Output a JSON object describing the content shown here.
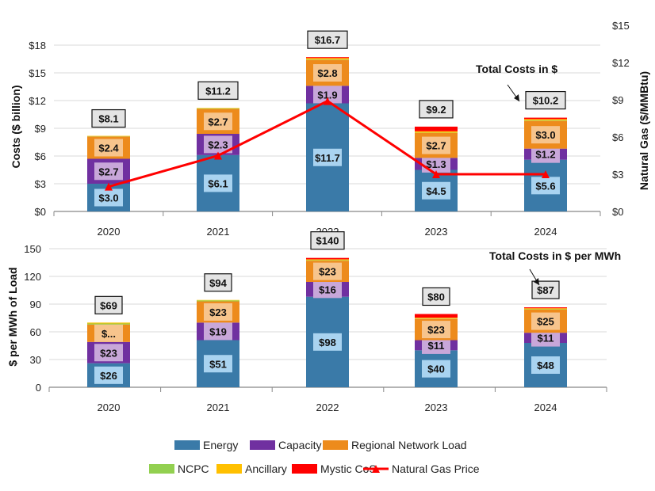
{
  "colors": {
    "Energy": "#3a7aa8",
    "Capacity": "#7030a0",
    "Regional Network Load": "#ed8b1c",
    "NCPC": "#92d050",
    "Ancillary": "#ffc000",
    "Mystic CoS": "#ff0000",
    "Natural Gas Price": "#ff0000"
  },
  "legend": [
    {
      "name": "Energy",
      "type": "bar"
    },
    {
      "name": "Capacity",
      "type": "bar"
    },
    {
      "name": "Regional Network Load",
      "type": "bar"
    },
    {
      "name": "NCPC",
      "type": "bar"
    },
    {
      "name": "Ancillary",
      "type": "bar"
    },
    {
      "name": "Mystic CoS",
      "type": "bar"
    },
    {
      "name": "Natural Gas Price",
      "type": "line"
    }
  ],
  "chart_data": [
    {
      "type": "bar",
      "stacked": true,
      "categories": [
        "2020",
        "2021",
        "2022",
        "2023",
        "2024"
      ],
      "ylabel": "Costs ($ billion)",
      "y2label": "Natural Gas ($/MMBtu)",
      "yticks": [
        "$0",
        "$3",
        "$6",
        "$9",
        "$12",
        "$15",
        "$18"
      ],
      "y2ticks": [
        "$0",
        "$3",
        "$6",
        "$9",
        "$12",
        "$15"
      ],
      "ylim": [
        0,
        18
      ],
      "y2lim": [
        0,
        15
      ],
      "grid": true,
      "annotation": "Total Costs in $",
      "totals": [
        "$8.1",
        "$11.2",
        "$16.7",
        "$9.2",
        "$10.2"
      ],
      "series": [
        {
          "name": "Energy",
          "values": [
            3.0,
            6.1,
            11.7,
            4.5,
            5.6
          ],
          "labels": [
            "$3.0",
            "$6.1",
            "$11.7",
            "$4.5",
            "$5.6"
          ]
        },
        {
          "name": "Capacity",
          "values": [
            2.7,
            2.3,
            1.9,
            1.3,
            1.2
          ],
          "labels": [
            "$2.7",
            "$2.3",
            "$1.9",
            "$1.3",
            "$1.2"
          ]
        },
        {
          "name": "Regional Network Load",
          "values": [
            2.4,
            2.7,
            2.8,
            2.7,
            3.0
          ],
          "labels": [
            "$2.4",
            "$2.7",
            "$2.8",
            "$2.7",
            "$3.0"
          ]
        },
        {
          "name": "NCPC",
          "values": [
            0.03,
            0.05,
            0.05,
            0.03,
            0.05
          ]
        },
        {
          "name": "Ancillary",
          "values": [
            0.05,
            0.05,
            0.15,
            0.15,
            0.15
          ]
        },
        {
          "name": "Mystic CoS",
          "values": [
            0,
            0,
            0.1,
            0.5,
            0.15
          ]
        }
      ],
      "line": {
        "name": "Natural Gas Price",
        "axis": "right",
        "values": [
          2.0,
          4.5,
          8.9,
          3.0,
          3.0
        ]
      }
    },
    {
      "type": "bar",
      "stacked": true,
      "categories": [
        "2020",
        "2021",
        "2022",
        "2023",
        "2024"
      ],
      "ylabel": "$ per MWh of Load",
      "yticks": [
        "0",
        "30",
        "60",
        "90",
        "120",
        "150"
      ],
      "ylim": [
        0,
        150
      ],
      "grid": true,
      "annotation": "Total Costs in $ per MWh",
      "totals": [
        "$69",
        "$94",
        "$140",
        "$80",
        "$87"
      ],
      "series": [
        {
          "name": "Energy",
          "values": [
            26,
            51,
            98,
            40,
            48
          ],
          "labels": [
            "$26",
            "$51",
            "$98",
            "$40",
            "$48"
          ]
        },
        {
          "name": "Capacity",
          "values": [
            23,
            19,
            16,
            11,
            11
          ],
          "labels": [
            "$23",
            "$19",
            "$16",
            "$11",
            "$11"
          ]
        },
        {
          "name": "Regional Network Load",
          "values": [
            19,
            23,
            23,
            23,
            25
          ],
          "labels": [
            "$...",
            "$23",
            "$23",
            "$23",
            "$25"
          ]
        },
        {
          "name": "NCPC",
          "values": [
            1,
            1,
            0.5,
            0.3,
            0.5
          ]
        },
        {
          "name": "Ancillary",
          "values": [
            1,
            0.5,
            1,
            1,
            1
          ]
        },
        {
          "name": "Mystic CoS",
          "values": [
            0,
            0,
            1.5,
            4,
            1
          ]
        }
      ]
    }
  ]
}
